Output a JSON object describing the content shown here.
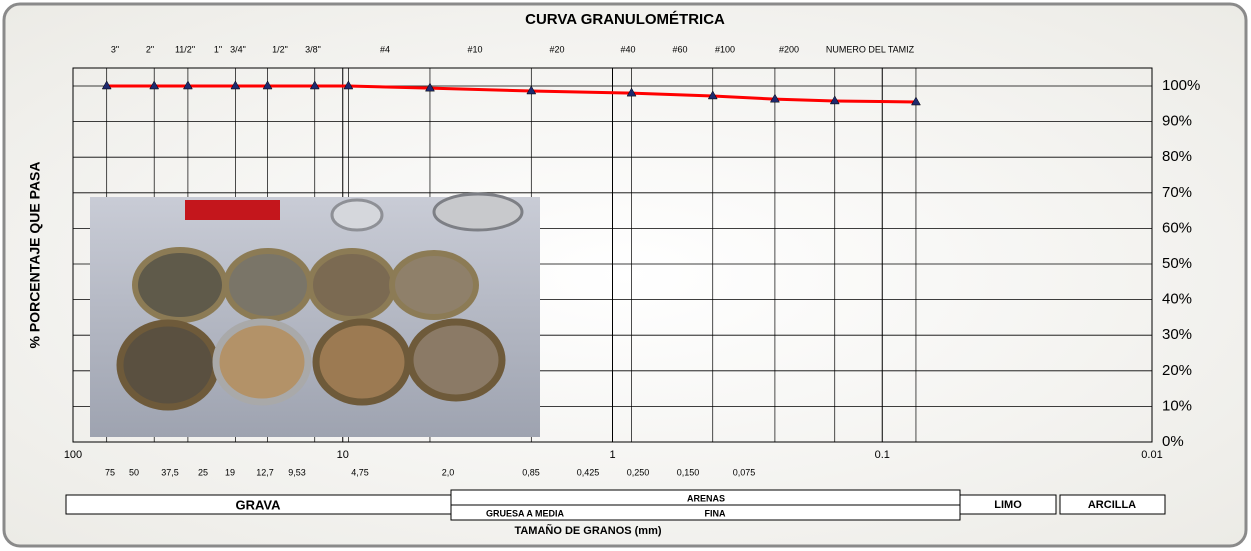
{
  "chart_data": {
    "type": "line",
    "title": "CURVA GRANULOMÉTRICA",
    "y_label": "% PORCENTAJE QUE PASA",
    "x_label": "TAMAÑO DE GRANOS (mm)",
    "sieve_label": "NUMERO DEL TAMIZ",
    "x_scale": "log",
    "xlim": [
      100,
      0.01
    ],
    "xticks": [
      100,
      10,
      1,
      0.1,
      0.01
    ],
    "ylim": [
      0,
      100
    ],
    "yticks": [
      {
        "value": 0,
        "label": "0%"
      },
      {
        "value": 10,
        "label": "10%"
      },
      {
        "value": 20,
        "label": "20%"
      },
      {
        "value": 30,
        "label": "30%"
      },
      {
        "value": 40,
        "label": "40%"
      },
      {
        "value": 50,
        "label": "50%"
      },
      {
        "value": 60,
        "label": "60%"
      },
      {
        "value": 70,
        "label": "70%"
      },
      {
        "value": 80,
        "label": "80%"
      },
      {
        "value": 90,
        "label": "90%"
      },
      {
        "value": 100,
        "label": "100%"
      }
    ],
    "grid": true,
    "sieves": [
      "3\"",
      "2\"",
      "11/2\"",
      "1\"",
      "3/4\"",
      "1/2\"",
      "3/8\"",
      "#4",
      "#10",
      "#20",
      "#40",
      "#60",
      "#100",
      "#200"
    ],
    "size_labels": [
      "75",
      "50",
      "37,5",
      "25",
      "19",
      "12,7",
      "9,53",
      "4,75",
      "2,0",
      "0,85",
      "0,425",
      "0,250",
      "0,150",
      "0,075"
    ],
    "x": [
      75,
      50,
      37.5,
      25,
      19,
      12.7,
      9.53,
      4.75,
      2.0,
      0.85,
      0.425,
      0.25,
      0.15,
      0.075
    ],
    "series": [
      {
        "color": "#ff0000",
        "marker_color": "#1f2a6e",
        "values": [
          100,
          100,
          100,
          100,
          100,
          100,
          100,
          99.4,
          98.6,
          98.0,
          97.2,
          96.3,
          95.8,
          95.5
        ]
      }
    ],
    "soil_classes": {
      "grava": "GRAVA",
      "arenas": "ARENAS",
      "gruesa_a_media": "GRUESA A MEDIA",
      "fina": "FINA",
      "limo": "LIMO",
      "arcilla": "ARCILLA"
    }
  }
}
